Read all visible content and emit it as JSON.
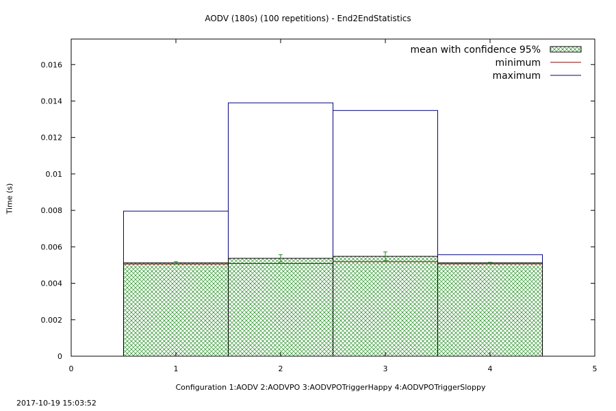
{
  "chart_data": {
    "type": "bar",
    "title": "AODV (180s) (100 repetitions) - End2EndStatistics",
    "xlabel": "Configuration 1:AODV  2:AODVPO  3:AODVPOTriggerHappy  4:AODVPOTriggerSloppy",
    "ylabel": "Time (s)",
    "xlim": [
      0,
      5
    ],
    "ylim": [
      0,
      0.0174
    ],
    "x_ticks": [
      "0",
      "1",
      "2",
      "3",
      "4",
      "5"
    ],
    "y_ticks": [
      "0",
      "0.002",
      "0.004",
      "0.006",
      "0.008",
      "0.01",
      "0.012",
      "0.014",
      "0.016"
    ],
    "categories": [
      "1",
      "2",
      "3",
      "4"
    ],
    "bar_width": 1,
    "legend_position": "top-right",
    "series": [
      {
        "name": "mean with confidence 95%",
        "values": [
          0.00512,
          0.00537,
          0.00548,
          0.00512
        ],
        "ci": [
          7e-05,
          0.0002,
          0.00024,
          3e-05
        ],
        "color": "#1a8a1a"
      },
      {
        "name": "minimum",
        "values": [
          0.00506,
          0.00509,
          0.00519,
          0.00507
        ],
        "color": "#8b0000"
      },
      {
        "name": "maximum",
        "values": [
          0.00796,
          0.0139,
          0.01348,
          0.00557
        ],
        "color": "#000080"
      }
    ]
  },
  "footer": {
    "timestamp": "2017-10-19 15:03:52"
  }
}
